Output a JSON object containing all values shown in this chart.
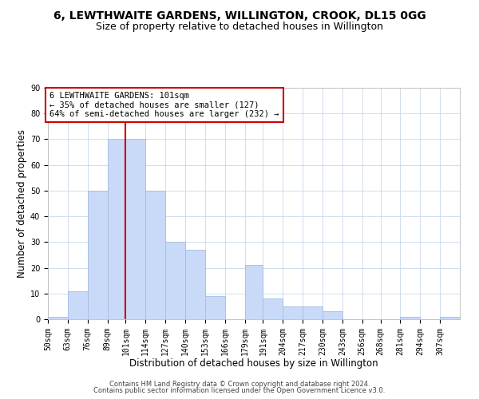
{
  "title": "6, LEWTHWAITE GARDENS, WILLINGTON, CROOK, DL15 0GG",
  "subtitle": "Size of property relative to detached houses in Willington",
  "xlabel": "Distribution of detached houses by size in Willington",
  "ylabel": "Number of detached properties",
  "bar_labels": [
    "50sqm",
    "63sqm",
    "76sqm",
    "89sqm",
    "101sqm",
    "114sqm",
    "127sqm",
    "140sqm",
    "153sqm",
    "166sqm",
    "179sqm",
    "191sqm",
    "204sqm",
    "217sqm",
    "230sqm",
    "243sqm",
    "256sqm",
    "268sqm",
    "281sqm",
    "294sqm",
    "307sqm"
  ],
  "bar_heights": [
    1,
    11,
    50,
    70,
    70,
    50,
    30,
    27,
    9,
    0,
    21,
    8,
    5,
    5,
    3,
    0,
    0,
    0,
    1,
    0,
    1
  ],
  "bar_edges": [
    50,
    63,
    76,
    89,
    101,
    114,
    127,
    140,
    153,
    166,
    179,
    191,
    204,
    217,
    230,
    243,
    256,
    268,
    281,
    294,
    307,
    320
  ],
  "bar_color": "#c9daf8",
  "bar_edge_color": "#a4bce0",
  "vline_x": 101,
  "vline_color": "#cc0000",
  "annotation_line1": "6 LEWTHWAITE GARDENS: 101sqm",
  "annotation_line2": "← 35% of detached houses are smaller (127)",
  "annotation_line3": "64% of semi-detached houses are larger (232) →",
  "annotation_box_color": "#cc0000",
  "ylim": [
    0,
    90
  ],
  "yticks": [
    0,
    10,
    20,
    30,
    40,
    50,
    60,
    70,
    80,
    90
  ],
  "footer_line1": "Contains HM Land Registry data © Crown copyright and database right 2024.",
  "footer_line2": "Contains public sector information licensed under the Open Government Licence v3.0.",
  "background_color": "#ffffff",
  "grid_color": "#c8d8ec",
  "title_fontsize": 10,
  "subtitle_fontsize": 9,
  "axis_label_fontsize": 8.5,
  "tick_fontsize": 7,
  "annotation_fontsize": 7.5,
  "footer_fontsize": 6
}
